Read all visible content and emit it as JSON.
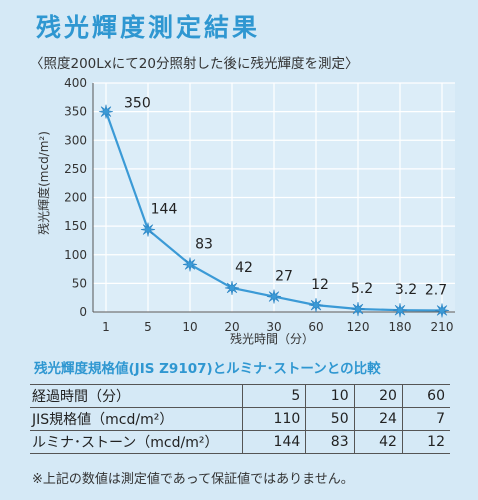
{
  "header": {
    "title": "残光輝度測定結果",
    "subtitle": "〈照度200Lxにて20分照射した後に残光輝度を測定〉"
  },
  "chart_data": {
    "type": "line",
    "categories": [
      "1",
      "5",
      "10",
      "20",
      "30",
      "60",
      "120",
      "180",
      "210"
    ],
    "values": [
      350,
      144,
      83,
      42,
      27,
      12,
      5.2,
      3.2,
      2.7
    ],
    "labels": [
      "350",
      "144",
      "83",
      "42",
      "27",
      "12",
      "5.2",
      "3.2",
      "2.7"
    ],
    "xlabel": "残光時間（分）",
    "ylabel": "残光輝度(mcd/m²)",
    "ylim": [
      0,
      400
    ],
    "yticks": [
      "0",
      "50",
      "100",
      "150",
      "200",
      "250",
      "300",
      "350",
      "400"
    ],
    "grid": true,
    "colors": {
      "line": "#3b9ad6",
      "marker": "#3b9ad6",
      "grid": "#ffffff"
    }
  },
  "comparison": {
    "title": "残光輝度規格値(JIS Z9107)とルミナ･ストーンとの比較",
    "rows": [
      {
        "label": "経過時間（分）",
        "values": [
          "5",
          "10",
          "20",
          "60"
        ]
      },
      {
        "label": "JIS規格値（mcd/m²）",
        "values": [
          "110",
          "50",
          "24",
          "7"
        ]
      },
      {
        "label": "ルミナ･ストーン（mcd/m²）",
        "values": [
          "144",
          "83",
          "42",
          "12"
        ]
      }
    ]
  },
  "note": "※上記の数値は測定値であって保証値ではありません。"
}
